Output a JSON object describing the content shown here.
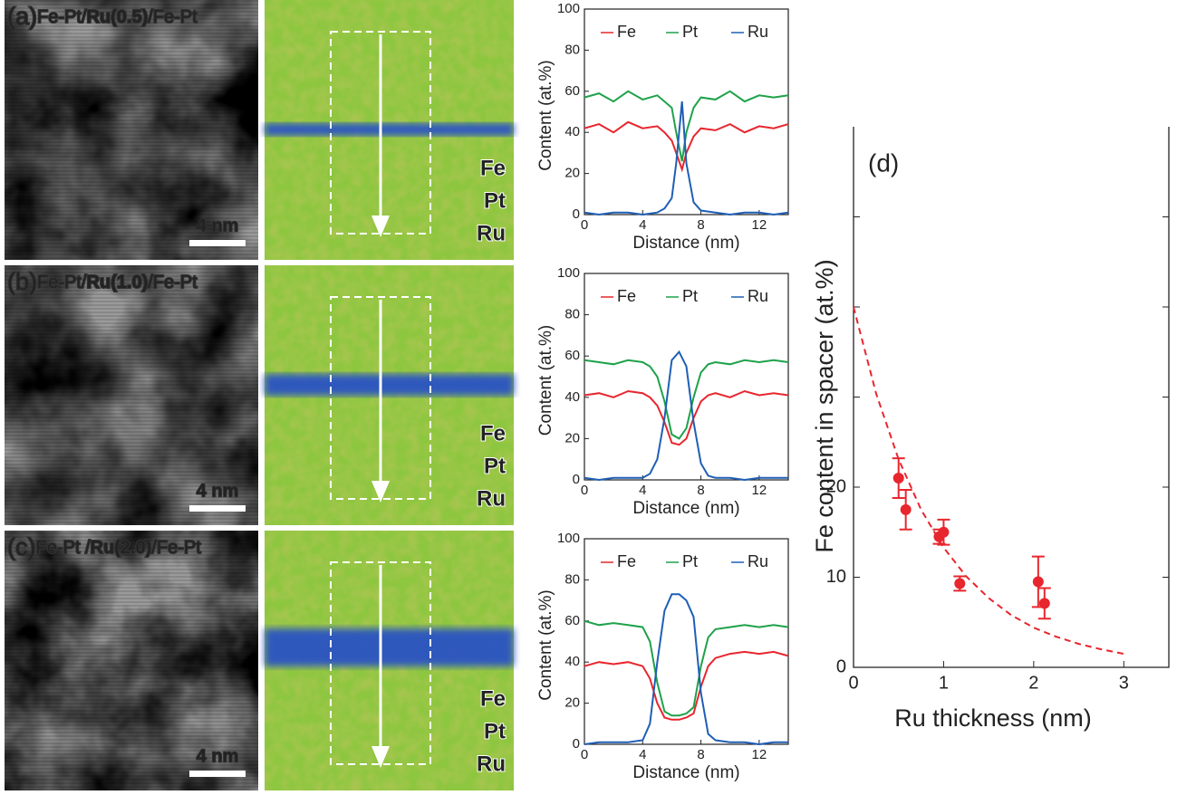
{
  "panels": [
    {
      "label": "(a)",
      "layer1": "Fe-Pt/",
      "spacer": "Ru(0.5)",
      "layer2": "/Fe-Pt",
      "scale_bar": "4 nm",
      "map_labels": [
        "Fe",
        "Pt",
        "Ru"
      ]
    },
    {
      "label": "(b)",
      "layer1": "Fe-Pt/",
      "spacer": "Ru(1.0)",
      "layer2": "/Fe-Pt",
      "scale_bar": "4 nm",
      "map_labels": [
        "Fe",
        "Pt",
        "Ru"
      ]
    },
    {
      "label": "(c)",
      "layer1": "Fe-Pt /",
      "spacer": "Ru(2.0)",
      "layer2": "/Fe-Pt",
      "scale_bar": "4 nm",
      "map_labels": [
        "Fe",
        "Pt",
        "Ru"
      ]
    }
  ],
  "chart_data": [
    {
      "type": "line",
      "xlabel": "Distance (nm)",
      "ylabel": "Content (at.%)",
      "x": [
        0,
        1,
        2,
        3,
        4,
        5,
        5.5,
        6,
        6.3,
        6.7,
        7,
        7.5,
        8,
        9,
        10,
        11,
        12,
        13,
        14
      ],
      "series": [
        {
          "name": "Fe",
          "color": "#e8262e",
          "values": [
            42,
            44,
            40,
            45,
            42,
            43,
            40,
            36,
            30,
            22,
            30,
            38,
            42,
            41,
            44,
            40,
            43,
            42,
            44
          ]
        },
        {
          "name": "Pt",
          "color": "#1ea24a",
          "values": [
            57,
            59,
            55,
            60,
            56,
            58,
            55,
            52,
            40,
            26,
            40,
            52,
            57,
            56,
            60,
            55,
            58,
            57,
            58
          ]
        },
        {
          "name": "Ru",
          "color": "#1f5fb5",
          "values": [
            1,
            0,
            1,
            1,
            0,
            1,
            3,
            8,
            25,
            55,
            25,
            6,
            2,
            1,
            0,
            1,
            1,
            0,
            1
          ]
        }
      ],
      "xlim": [
        0,
        14
      ],
      "xticks": [
        0,
        4,
        8,
        12
      ],
      "ylim": [
        0,
        100
      ],
      "yticks": [
        0,
        20,
        40,
        60,
        80,
        100
      ]
    },
    {
      "type": "line",
      "xlabel": "Distance (nm)",
      "ylabel": "Content (at.%)",
      "x": [
        0,
        1,
        2,
        3,
        4,
        4.5,
        5,
        5.5,
        6,
        6.5,
        7,
        7.5,
        8,
        8.5,
        9,
        10,
        11,
        12,
        13,
        14
      ],
      "series": [
        {
          "name": "Fe",
          "color": "#e8262e",
          "values": [
            41,
            42,
            40,
            43,
            42,
            40,
            36,
            28,
            18,
            17,
            20,
            30,
            38,
            41,
            42,
            40,
            43,
            41,
            42,
            41
          ]
        },
        {
          "name": "Pt",
          "color": "#1ea24a",
          "values": [
            58,
            57,
            56,
            58,
            57,
            55,
            50,
            38,
            22,
            20,
            25,
            40,
            52,
            56,
            57,
            56,
            58,
            57,
            58,
            57
          ]
        },
        {
          "name": "Ru",
          "color": "#1f5fb5",
          "values": [
            1,
            0,
            1,
            1,
            1,
            3,
            10,
            30,
            58,
            62,
            55,
            28,
            8,
            2,
            1,
            1,
            0,
            1,
            1,
            1
          ]
        }
      ],
      "xlim": [
        0,
        14
      ],
      "xticks": [
        0,
        4,
        8,
        12
      ],
      "ylim": [
        0,
        100
      ],
      "yticks": [
        0,
        20,
        40,
        60,
        80,
        100
      ]
    },
    {
      "type": "line",
      "xlabel": "Distance (nm)",
      "ylabel": "Content (at.%)",
      "x": [
        0,
        1,
        2,
        3,
        4,
        4.5,
        5,
        5.5,
        6,
        6.5,
        7,
        7.5,
        8,
        8.5,
        9,
        10,
        11,
        12,
        13,
        14
      ],
      "series": [
        {
          "name": "Fe",
          "color": "#e8262e",
          "values": [
            38,
            40,
            39,
            40,
            38,
            32,
            20,
            13,
            12,
            12,
            13,
            15,
            28,
            38,
            42,
            44,
            45,
            44,
            45,
            43
          ]
        },
        {
          "name": "Pt",
          "color": "#1ea24a",
          "values": [
            60,
            58,
            59,
            58,
            57,
            50,
            30,
            16,
            14,
            14,
            15,
            18,
            38,
            52,
            56,
            57,
            58,
            57,
            58,
            57
          ]
        },
        {
          "name": "Ru",
          "color": "#1f5fb5",
          "values": [
            0,
            1,
            1,
            1,
            2,
            10,
            40,
            65,
            73,
            73,
            70,
            62,
            25,
            5,
            2,
            1,
            1,
            0,
            1,
            1
          ]
        }
      ],
      "xlim": [
        0,
        14
      ],
      "xticks": [
        0,
        4,
        8,
        12
      ],
      "ylim": [
        0,
        100
      ],
      "yticks": [
        0,
        20,
        40,
        60,
        80,
        100
      ]
    },
    {
      "type": "scatter",
      "label": "(d)",
      "xlabel": "Ru thickness (nm)",
      "ylabel": "Fe content in spacer (at.%)",
      "color": "#e8262e",
      "x": [
        0.5,
        0.58,
        0.95,
        1.0,
        1.18,
        2.05,
        2.12
      ],
      "values": [
        21,
        17.5,
        14.5,
        15,
        9.3,
        9.5,
        7.1
      ],
      "errors": [
        2.2,
        2.2,
        0.8,
        1.4,
        0.8,
        2.8,
        1.7
      ],
      "fit": {
        "x": [
          0,
          0.25,
          0.5,
          0.75,
          1,
          1.25,
          1.5,
          1.75,
          2,
          2.25,
          2.5,
          2.75,
          3
        ],
        "values": [
          40,
          30.4,
          23.1,
          17.5,
          13.3,
          10.1,
          7.7,
          5.8,
          4.4,
          3.4,
          2.6,
          2.0,
          1.5
        ]
      },
      "xlim": [
        0,
        3.5
      ],
      "xticks": [
        0,
        1,
        2,
        3
      ],
      "ylim": [
        0,
        60
      ],
      "yticks": [
        0,
        10,
        20
      ],
      "minor_yticks": [
        30,
        40,
        50
      ]
    }
  ]
}
